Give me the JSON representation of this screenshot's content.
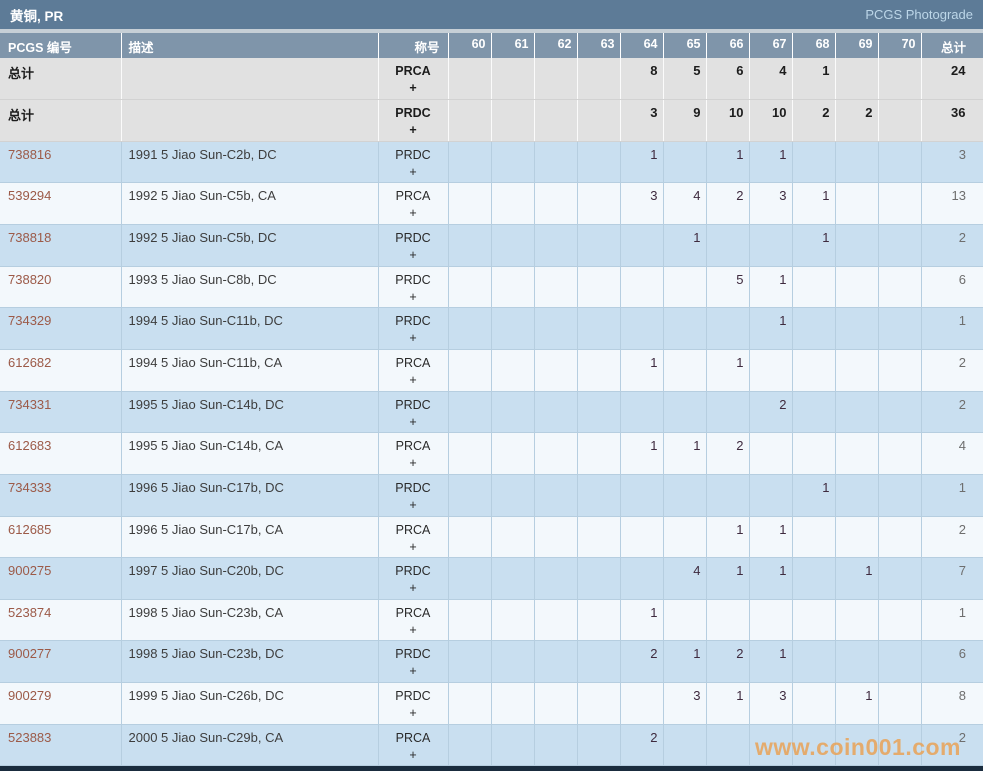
{
  "title_bar": {
    "title": "黄铜, PR",
    "link": "PCGS Photograde"
  },
  "table": {
    "headers": {
      "number": "PCGS 编号",
      "description": "描述",
      "designation": "称号",
      "grades": [
        "60",
        "61",
        "62",
        "63",
        "64",
        "65",
        "66",
        "67",
        "68",
        "69",
        "70"
      ],
      "total": "总计"
    },
    "summary_rows": [
      {
        "label": "总计",
        "description": "",
        "designation": "PRCA",
        "plus": "+",
        "values": [
          "",
          "",
          "",
          "",
          "8",
          "5",
          "6",
          "4",
          "1",
          "",
          ""
        ],
        "total": "24"
      },
      {
        "label": "总计",
        "description": "",
        "designation": "PRDC",
        "plus": "+",
        "values": [
          "",
          "",
          "",
          "",
          "3",
          "9",
          "10",
          "10",
          "2",
          "2",
          ""
        ],
        "total": "36"
      }
    ],
    "rows": [
      {
        "number": "738816",
        "description": "1991 5 Jiao Sun-C2b, DC",
        "designation": "PRDC",
        "plus": "+",
        "values": [
          "",
          "",
          "",
          "",
          "1",
          "",
          "1",
          "1",
          "",
          "",
          ""
        ],
        "total": "3"
      },
      {
        "number": "539294",
        "description": "1992 5 Jiao Sun-C5b, CA",
        "designation": "PRCA",
        "plus": "+",
        "values": [
          "",
          "",
          "",
          "",
          "3",
          "4",
          "2",
          "3",
          "1",
          "",
          ""
        ],
        "total": "13"
      },
      {
        "number": "738818",
        "description": "1992 5 Jiao Sun-C5b, DC",
        "designation": "PRDC",
        "plus": "+",
        "values": [
          "",
          "",
          "",
          "",
          "",
          "1",
          "",
          "",
          "1",
          "",
          ""
        ],
        "total": "2"
      },
      {
        "number": "738820",
        "description": "1993 5 Jiao Sun-C8b, DC",
        "designation": "PRDC",
        "plus": "+",
        "values": [
          "",
          "",
          "",
          "",
          "",
          "",
          "5",
          "1",
          "",
          "",
          ""
        ],
        "total": "6"
      },
      {
        "number": "734329",
        "description": "1994 5 Jiao Sun-C11b, DC",
        "designation": "PRDC",
        "plus": "+",
        "values": [
          "",
          "",
          "",
          "",
          "",
          "",
          "",
          "1",
          "",
          "",
          ""
        ],
        "total": "1"
      },
      {
        "number": "612682",
        "description": "1994 5 Jiao Sun-C11b, CA",
        "designation": "PRCA",
        "plus": "+",
        "values": [
          "",
          "",
          "",
          "",
          "1",
          "",
          "1",
          "",
          "",
          "",
          ""
        ],
        "total": "2"
      },
      {
        "number": "734331",
        "description": "1995 5 Jiao Sun-C14b, DC",
        "designation": "PRDC",
        "plus": "+",
        "values": [
          "",
          "",
          "",
          "",
          "",
          "",
          "",
          "2",
          "",
          "",
          ""
        ],
        "total": "2"
      },
      {
        "number": "612683",
        "description": "1995 5 Jiao Sun-C14b, CA",
        "designation": "PRCA",
        "plus": "+",
        "values": [
          "",
          "",
          "",
          "",
          "1",
          "1",
          "2",
          "",
          "",
          "",
          ""
        ],
        "total": "4"
      },
      {
        "number": "734333",
        "description": "1996 5 Jiao Sun-C17b, DC",
        "designation": "PRDC",
        "plus": "+",
        "values": [
          "",
          "",
          "",
          "",
          "",
          "",
          "",
          "",
          "1",
          "",
          ""
        ],
        "total": "1"
      },
      {
        "number": "612685",
        "description": "1996 5 Jiao Sun-C17b, CA",
        "designation": "PRCA",
        "plus": "+",
        "values": [
          "",
          "",
          "",
          "",
          "",
          "",
          "1",
          "1",
          "",
          "",
          ""
        ],
        "total": "2"
      },
      {
        "number": "900275",
        "description": "1997 5 Jiao Sun-C20b, DC",
        "designation": "PRDC",
        "plus": "+",
        "values": [
          "",
          "",
          "",
          "",
          "",
          "4",
          "1",
          "1",
          "",
          "1",
          ""
        ],
        "total": "7"
      },
      {
        "number": "523874",
        "description": "1998 5 Jiao Sun-C23b, CA",
        "designation": "PRCA",
        "plus": "+",
        "values": [
          "",
          "",
          "",
          "",
          "1",
          "",
          "",
          "",
          "",
          "",
          ""
        ],
        "total": "1"
      },
      {
        "number": "900277",
        "description": "1998 5 Jiao Sun-C23b, DC",
        "designation": "PRDC",
        "plus": "+",
        "values": [
          "",
          "",
          "",
          "",
          "2",
          "1",
          "2",
          "1",
          "",
          "",
          ""
        ],
        "total": "6"
      },
      {
        "number": "900279",
        "description": "1999 5 Jiao Sun-C26b, DC",
        "designation": "PRDC",
        "plus": "+",
        "values": [
          "",
          "",
          "",
          "",
          "",
          "3",
          "1",
          "3",
          "",
          "1",
          ""
        ],
        "total": "8"
      },
      {
        "number": "523883",
        "description": "2000 5 Jiao Sun-C29b, CA",
        "designation": "PRCA",
        "plus": "+",
        "values": [
          "",
          "",
          "",
          "",
          "2",
          "",
          "",
          "",
          "",
          "",
          ""
        ],
        "total": "2"
      }
    ]
  },
  "watermark": "www.coin001.com",
  "colors": {
    "title_bar_bg": "#5d7b97",
    "header_bg": "#7f95aa",
    "row_blue": "#c9dff0",
    "row_white": "#f3f8fc",
    "summary_bg": "#e1e1e1",
    "grid_border": "#b6cee0",
    "number_link": "#9c5a48",
    "grade_value": "#3e2a3e",
    "watermark": "#e9a256",
    "footer_bar": "#1a2c3e"
  }
}
